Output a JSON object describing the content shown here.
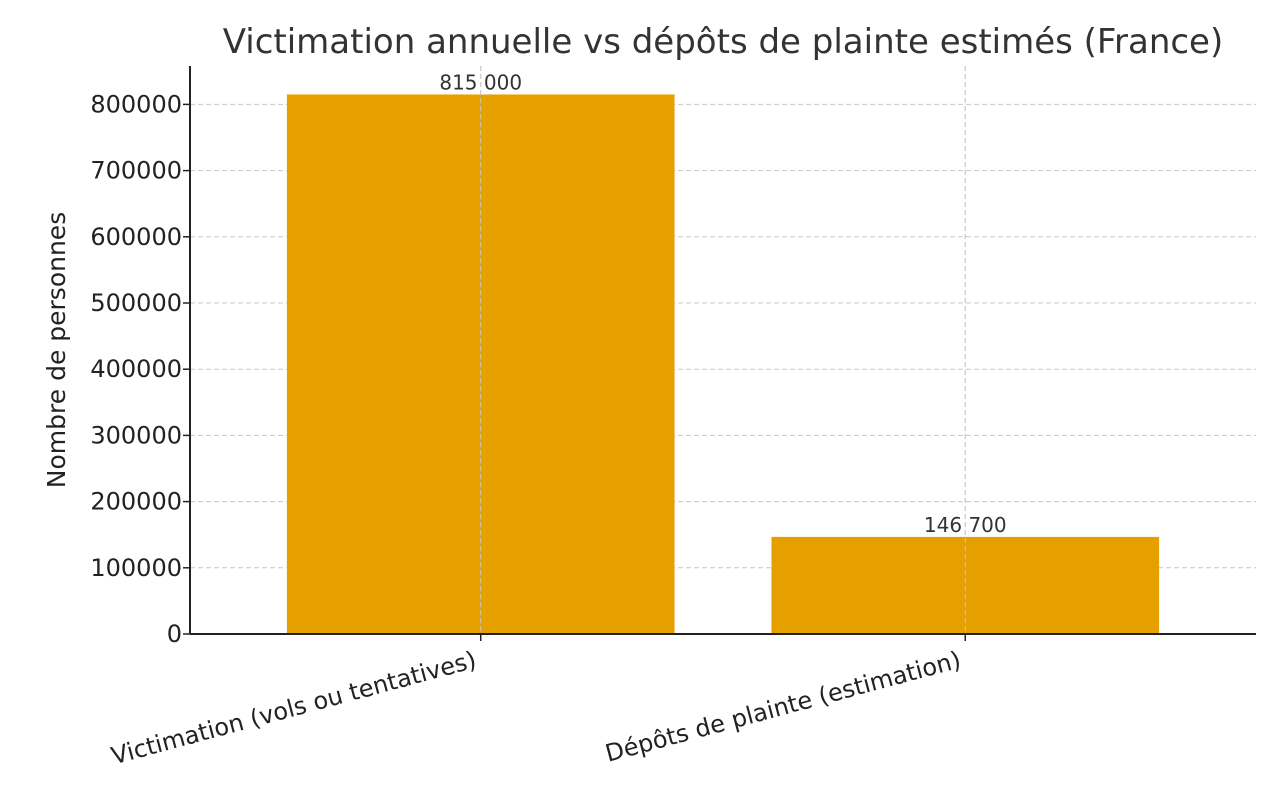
{
  "chart_data": {
    "type": "bar",
    "title": "Victimation annuelle vs dépôts de plainte estimés (France)",
    "xlabel": "",
    "ylabel": "Nombre de personnes",
    "categories": [
      "Victimation (vols ou tentatives)",
      "Dépôts de plainte (estimation)"
    ],
    "values": [
      815000,
      146700
    ],
    "data_labels": [
      "815 000",
      "146 700"
    ],
    "ylim": [
      0,
      858000
    ],
    "yticks": [
      0,
      100000,
      200000,
      300000,
      400000,
      500000,
      600000,
      700000,
      800000
    ],
    "ytick_labels": [
      "0",
      "100000",
      "200000",
      "300000",
      "400000",
      "500000",
      "600000",
      "700000",
      "800000"
    ],
    "grid": true,
    "legend": "none",
    "bar_color": "#E5A000"
  }
}
